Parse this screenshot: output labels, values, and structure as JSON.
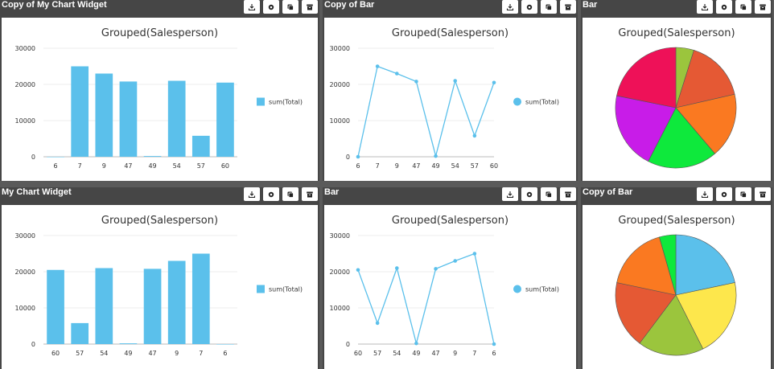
{
  "widgets": [
    {
      "title": "Copy of My Chart Widget",
      "chart_data": {
        "type": "bar",
        "title": "Grouped(Salesperson)",
        "categories": [
          "6",
          "7",
          "9",
          "47",
          "49",
          "54",
          "57",
          "60"
        ],
        "series": [
          {
            "name": "sum(Total)",
            "values": [
              0,
              25000,
              23000,
              20800,
              200,
              21000,
              5800,
              20500
            ]
          }
        ],
        "ylim": [
          0,
          30000
        ],
        "yticks": [
          "30000",
          "20000",
          "10000",
          "0"
        ],
        "legend_position": "right",
        "color": "#5bc0eb"
      }
    },
    {
      "title": "Copy of Bar",
      "chart_data": {
        "type": "line",
        "title": "Grouped(Salesperson)",
        "categories": [
          "6",
          "7",
          "9",
          "47",
          "49",
          "54",
          "57",
          "60"
        ],
        "series": [
          {
            "name": "sum(Total)",
            "values": [
              0,
              25000,
              23000,
              20800,
              200,
              21000,
              5800,
              20500
            ]
          }
        ],
        "ylim": [
          0,
          30000
        ],
        "yticks": [
          "30000",
          "20000",
          "10000",
          "0"
        ],
        "legend_position": "right",
        "color": "#5bc0eb"
      }
    },
    {
      "title": "Bar",
      "chart_data": {
        "type": "pie",
        "title": "Grouped(Salesperson)",
        "values": [
          1200,
          4100,
          4300,
          4650,
          5100,
          5400
        ],
        "colors": [
          "#9bc53d",
          "#e55934",
          "#fa7921",
          "#0ee93c",
          "#c81ce8",
          "#ee1158"
        ]
      }
    },
    {
      "title": "My Chart Widget",
      "chart_data": {
        "type": "bar",
        "title": "Grouped(Salesperson)",
        "categories": [
          "60",
          "57",
          "54",
          "49",
          "47",
          "9",
          "7",
          "6"
        ],
        "series": [
          {
            "name": "sum(Total)",
            "values": [
              20500,
              5800,
              21000,
              200,
              20800,
              23000,
              25000,
              0
            ]
          }
        ],
        "ylim": [
          0,
          30000
        ],
        "yticks": [
          "30000",
          "20000",
          "10000",
          "0"
        ],
        "legend_position": "right",
        "color": "#5bc0eb"
      }
    },
    {
      "title": "Bar",
      "chart_data": {
        "type": "line",
        "title": "Grouped(Salesperson)",
        "categories": [
          "60",
          "57",
          "54",
          "49",
          "47",
          "9",
          "7",
          "6"
        ],
        "series": [
          {
            "name": "sum(Total)",
            "values": [
              20500,
              5800,
              21000,
              200,
              20800,
              23000,
              25000,
              0
            ]
          }
        ],
        "ylim": [
          0,
          30000
        ],
        "yticks": [
          "30000",
          "20000",
          "10000",
          "0"
        ],
        "legend_position": "right",
        "color": "#5bc0eb"
      }
    },
    {
      "title": "Copy of Bar",
      "chart_data": {
        "type": "pie",
        "title": "Grouped(Salesperson)",
        "values": [
          5400,
          5200,
          4400,
          4500,
          4300,
          1100
        ],
        "colors": [
          "#5bc0eb",
          "#fde74c",
          "#9bc53d",
          "#e55934",
          "#fa7921",
          "#0ee93c"
        ]
      }
    }
  ],
  "icons": [
    "export-icon",
    "settings-icon",
    "copy-icon",
    "delete-icon"
  ]
}
